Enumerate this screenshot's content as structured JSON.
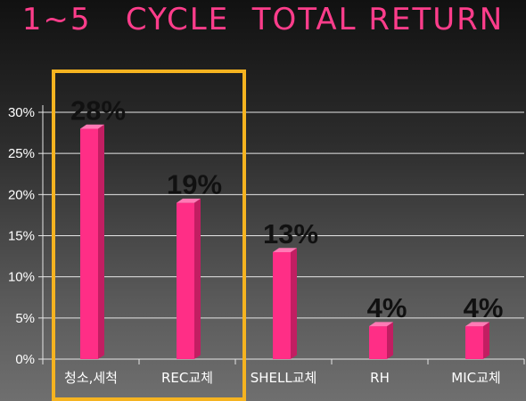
{
  "title": "1~5   CYCLE  TOTAL RETURN",
  "colors": {
    "bar_front": "#ff2e86",
    "bar_side": "#c21e62",
    "bar_top": "#ff7ab5",
    "highlight_box": "#f5b320",
    "grid": "#e6e6e6",
    "title": "#ff3d8b"
  },
  "chart_data": {
    "type": "bar",
    "categories": [
      "청소,세척",
      "REC교체",
      "SHELL교체",
      "RH",
      "MIC교체"
    ],
    "values": [
      28,
      19,
      13,
      4,
      4
    ],
    "data_labels": [
      "28%",
      "19%",
      "13%",
      "4%",
      "4%"
    ],
    "ylim": [
      0,
      30
    ],
    "yticks": [
      "0%",
      "5%",
      "10%",
      "15%",
      "20%",
      "25%",
      "30%"
    ],
    "grid": true,
    "highlighted_categories": [
      "청소,세척",
      "REC교체"
    ]
  }
}
